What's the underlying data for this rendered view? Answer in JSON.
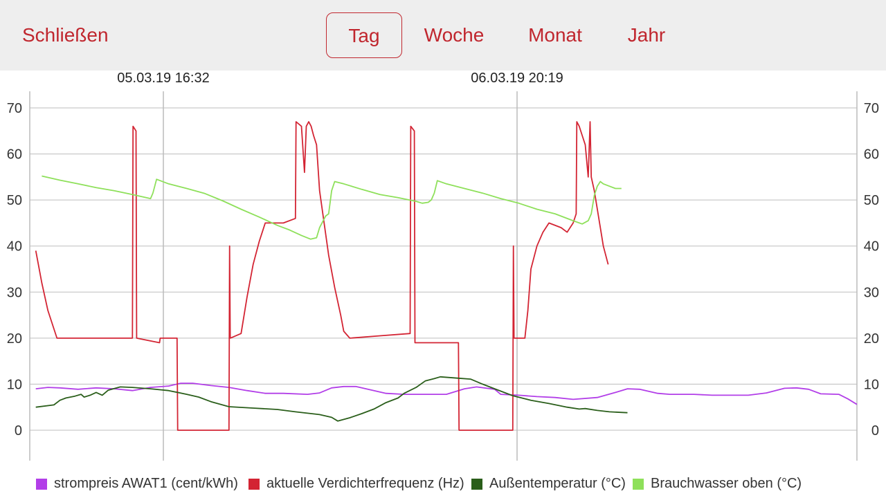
{
  "header": {
    "close_label": "Schließen",
    "tabs": [
      {
        "label": "Tag",
        "active": true
      },
      {
        "label": "Woche",
        "active": false
      },
      {
        "label": "Monat",
        "active": false
      },
      {
        "label": "Jahr",
        "active": false
      }
    ]
  },
  "date_markers": [
    "05.03.19 16:32",
    "06.03.19 20:19"
  ],
  "colors": {
    "accent": "#c0262e",
    "strompreis": "#b23ee8",
    "frequenz": "#d32433",
    "aussentemp": "#2a5e1a",
    "brauchwasser": "#8ee05a"
  },
  "chart_data": {
    "type": "line",
    "ylim": [
      0,
      70
    ],
    "yticks": [
      0,
      10,
      20,
      30,
      40,
      50,
      60,
      70
    ],
    "ytick_labels": [
      "0",
      "10",
      "20",
      "30",
      "40",
      "50",
      "60",
      "70"
    ],
    "right_axis": true,
    "grid": true,
    "legend_position": "bottom",
    "series": [
      {
        "name": "strompreis AWAT1 (cent/kWh)",
        "color": "#b23ee8",
        "points": [
          [
            1,
            9
          ],
          [
            3,
            9.3
          ],
          [
            5,
            9.2
          ],
          [
            8,
            8.9
          ],
          [
            11,
            9.2
          ],
          [
            14,
            9
          ],
          [
            17,
            8.6
          ],
          [
            20,
            9.3
          ],
          [
            23,
            9.6
          ],
          [
            25,
            10.2
          ],
          [
            27,
            10.2
          ],
          [
            30,
            9.7
          ],
          [
            33,
            9.3
          ],
          [
            36,
            8.6
          ],
          [
            39,
            8
          ],
          [
            42,
            8
          ],
          [
            46,
            7.8
          ],
          [
            48,
            8.1
          ],
          [
            50,
            9.2
          ],
          [
            52,
            9.5
          ],
          [
            54,
            9.5
          ],
          [
            57,
            8.6
          ],
          [
            59,
            8
          ],
          [
            62,
            7.8
          ],
          [
            66,
            7.8
          ],
          [
            69,
            7.8
          ],
          [
            72,
            9
          ],
          [
            74,
            9.4
          ],
          [
            77,
            8.9
          ],
          [
            78,
            7.8
          ],
          [
            81,
            7.6
          ],
          [
            84,
            7.3
          ],
          [
            87,
            7.1
          ],
          [
            90,
            6.7
          ],
          [
            94,
            7.1
          ],
          [
            97,
            8.2
          ],
          [
            99,
            9
          ],
          [
            101,
            8.9
          ],
          [
            104,
            8
          ],
          [
            106,
            7.8
          ],
          [
            110,
            7.8
          ],
          [
            113,
            7.6
          ],
          [
            116,
            7.6
          ],
          [
            119,
            7.6
          ],
          [
            122,
            8.1
          ],
          [
            125,
            9.1
          ],
          [
            127,
            9.2
          ],
          [
            129,
            8.9
          ],
          [
            131,
            7.9
          ],
          [
            134,
            7.8
          ],
          [
            135.5,
            6.8
          ],
          [
            137,
            5.6
          ]
        ]
      },
      {
        "name": "aktuelle Verdichterfrequenz (Hz)",
        "color": "#d32433",
        "points": [
          [
            1,
            39
          ],
          [
            2,
            32
          ],
          [
            3,
            26
          ],
          [
            4,
            22
          ],
          [
            4.5,
            20
          ],
          [
            8,
            20
          ],
          [
            12,
            20
          ],
          [
            16,
            20
          ],
          [
            17,
            20
          ],
          [
            17.1,
            66
          ],
          [
            17.6,
            65
          ],
          [
            17.7,
            20
          ],
          [
            21.5,
            19
          ],
          [
            21.6,
            20
          ],
          [
            24.4,
            20
          ],
          [
            24.5,
            0
          ],
          [
            33,
            0
          ],
          [
            33.1,
            40
          ],
          [
            33.2,
            20
          ],
          [
            35,
            21
          ],
          [
            36,
            29
          ],
          [
            37,
            36
          ],
          [
            38,
            41
          ],
          [
            39,
            45
          ],
          [
            42,
            45
          ],
          [
            44,
            46
          ],
          [
            44.1,
            67
          ],
          [
            45,
            66
          ],
          [
            45.5,
            56
          ],
          [
            45.8,
            66
          ],
          [
            46.2,
            67
          ],
          [
            46.6,
            66
          ],
          [
            47,
            64
          ],
          [
            47.5,
            62
          ],
          [
            48,
            52
          ],
          [
            49.5,
            38
          ],
          [
            50.5,
            31
          ],
          [
            51.5,
            25
          ],
          [
            52,
            21.5
          ],
          [
            53,
            20
          ],
          [
            58,
            20.5
          ],
          [
            63,
            21
          ],
          [
            63.1,
            66
          ],
          [
            63.7,
            65
          ],
          [
            63.8,
            19
          ],
          [
            71,
            19
          ],
          [
            71.1,
            0
          ],
          [
            80,
            0
          ],
          [
            80.1,
            40
          ],
          [
            80.2,
            20
          ],
          [
            82,
            20
          ],
          [
            82.5,
            26
          ],
          [
            83,
            35
          ],
          [
            84,
            40
          ],
          [
            85,
            43
          ],
          [
            86,
            45
          ],
          [
            88,
            44
          ],
          [
            89,
            43
          ],
          [
            90,
            45
          ],
          [
            90.5,
            47
          ],
          [
            90.6,
            67
          ],
          [
            91,
            66
          ],
          [
            91.5,
            64
          ],
          [
            92,
            62
          ],
          [
            92.5,
            55
          ],
          [
            92.8,
            67
          ],
          [
            93,
            55
          ],
          [
            93.5,
            52
          ],
          [
            94.5,
            44
          ],
          [
            95,
            40
          ],
          [
            95.8,
            36
          ]
        ]
      },
      {
        "name": "Außentemperatur (°C)",
        "color": "#2a5e1a",
        "points": [
          [
            1,
            5
          ],
          [
            4,
            5.5
          ],
          [
            5,
            6.5
          ],
          [
            6,
            7
          ],
          [
            7.5,
            7.4
          ],
          [
            8.5,
            7.8
          ],
          [
            9,
            7.2
          ],
          [
            10,
            7.6
          ],
          [
            11,
            8.2
          ],
          [
            12,
            7.6
          ],
          [
            13,
            8.7
          ],
          [
            15,
            9.4
          ],
          [
            17,
            9.3
          ],
          [
            20,
            9
          ],
          [
            23,
            8.6
          ],
          [
            26,
            7.8
          ],
          [
            28,
            7.2
          ],
          [
            30,
            6.2
          ],
          [
            33,
            5.1
          ],
          [
            37,
            4.8
          ],
          [
            41,
            4.5
          ],
          [
            44,
            4
          ],
          [
            48,
            3.4
          ],
          [
            50,
            2.8
          ],
          [
            51,
            2
          ],
          [
            53,
            2.7
          ],
          [
            55,
            3.6
          ],
          [
            57,
            4.6
          ],
          [
            59,
            6
          ],
          [
            61,
            7
          ],
          [
            62,
            8
          ],
          [
            64,
            9.3
          ],
          [
            65.5,
            10.7
          ],
          [
            67,
            11.2
          ],
          [
            68,
            11.6
          ],
          [
            71,
            11.3
          ],
          [
            73,
            11.1
          ],
          [
            75,
            10
          ],
          [
            77,
            9
          ],
          [
            80,
            7.5
          ],
          [
            83,
            6.5
          ],
          [
            86,
            5.8
          ],
          [
            89,
            5
          ],
          [
            91,
            4.6
          ],
          [
            92,
            4.7
          ],
          [
            94,
            4.3
          ],
          [
            96,
            4.0
          ],
          [
            99,
            3.8
          ]
        ]
      },
      {
        "name": "Brauchwasser oben (°C)",
        "color": "#8ee05a",
        "points": [
          [
            2,
            55.2
          ],
          [
            5,
            54.3
          ],
          [
            8,
            53.5
          ],
          [
            11,
            52.7
          ],
          [
            14,
            52
          ],
          [
            17,
            51.2
          ],
          [
            20,
            50.3
          ],
          [
            20.4,
            51.5
          ],
          [
            21,
            54.5
          ],
          [
            23,
            53.5
          ],
          [
            26,
            52.5
          ],
          [
            29,
            51.4
          ],
          [
            32,
            49.8
          ],
          [
            35,
            48
          ],
          [
            38,
            46.3
          ],
          [
            41,
            44.5
          ],
          [
            43,
            43.5
          ],
          [
            45,
            42.3
          ],
          [
            46.5,
            41.5
          ],
          [
            47.5,
            41.8
          ],
          [
            48,
            44
          ],
          [
            49,
            46.5
          ],
          [
            49.5,
            47
          ],
          [
            50,
            52
          ],
          [
            50.5,
            54
          ],
          [
            52,
            53.5
          ],
          [
            55,
            52.3
          ],
          [
            58,
            51.2
          ],
          [
            61,
            50.5
          ],
          [
            64,
            49.7
          ],
          [
            65,
            49.3
          ],
          [
            66,
            49.5
          ],
          [
            66.5,
            50
          ],
          [
            67,
            51.5
          ],
          [
            67.5,
            54.2
          ],
          [
            69,
            53.5
          ],
          [
            72,
            52.5
          ],
          [
            75,
            51.5
          ],
          [
            78,
            50.3
          ],
          [
            81,
            49.3
          ],
          [
            84,
            48
          ],
          [
            87,
            47
          ],
          [
            90,
            45.5
          ],
          [
            91.5,
            44.8
          ],
          [
            92.5,
            45.5
          ],
          [
            93,
            47
          ],
          [
            93.5,
            51
          ],
          [
            94,
            53
          ],
          [
            94.5,
            54
          ],
          [
            95,
            53.5
          ],
          [
            96,
            53
          ],
          [
            97,
            52.5
          ],
          [
            98,
            52.5
          ]
        ]
      }
    ]
  }
}
